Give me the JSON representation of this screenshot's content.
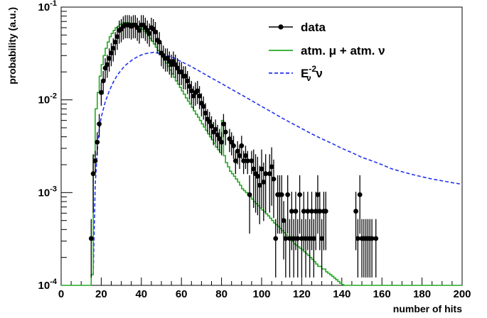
{
  "chart_data": {
    "type": "line",
    "title": "",
    "xlabel": "number of hits",
    "ylabel": "probability (a.u.)",
    "xlim": [
      0,
      200
    ],
    "ylim": [
      0.0001,
      0.1
    ],
    "yscale": "log",
    "grid": false,
    "legend_position": "top-right",
    "x_ticks": [
      0,
      20,
      40,
      60,
      80,
      100,
      120,
      140,
      160,
      180,
      200
    ],
    "x_tick_labels": [
      "0",
      "20",
      "40",
      "60",
      "80",
      "100",
      "120",
      "140",
      "160",
      "180",
      "200"
    ],
    "y_ticks": [
      0.0001,
      0.001,
      0.01,
      0.1
    ],
    "y_tick_labels": [
      {
        "base": "10",
        "exp": "-4"
      },
      {
        "base": "10",
        "exp": "-3"
      },
      {
        "base": "10",
        "exp": "-2"
      },
      {
        "base": "10",
        "exp": "-1"
      }
    ],
    "legend": [
      {
        "label": "data"
      },
      {
        "label": "atm. μ + atm. ν"
      },
      {
        "label": "E",
        "sub": "ν",
        "sup": "-2",
        "suffix": " ν"
      }
    ],
    "colors": {
      "data": "#000000",
      "atm": "#22aa22",
      "e2": "#2233ee"
    },
    "series": [
      {
        "kind": "points",
        "x": [
          15,
          16,
          17,
          18,
          19,
          20,
          21,
          22,
          23,
          24,
          25,
          26,
          27,
          28,
          29,
          30,
          31,
          32,
          33,
          34,
          35,
          36,
          37,
          38,
          39,
          40,
          41,
          42,
          43,
          44,
          45,
          46,
          47,
          48,
          49,
          50,
          51,
          52,
          53,
          54,
          55,
          56,
          57,
          58,
          59,
          60,
          61,
          62,
          63,
          64,
          65,
          66,
          67,
          68,
          69,
          70,
          71,
          72,
          73,
          74,
          75,
          76,
          77,
          78,
          79,
          80,
          81,
          82,
          84,
          85,
          86,
          87,
          88,
          89,
          90,
          91,
          92,
          93,
          94,
          95,
          96,
          97,
          98,
          99,
          100,
          101,
          102,
          104,
          105,
          106,
          107,
          108,
          109,
          110,
          111,
          112,
          113,
          114,
          115,
          116,
          117,
          118,
          119,
          120,
          121,
          122,
          123,
          124,
          125,
          126,
          127,
          128,
          129,
          130,
          131,
          132,
          147,
          148,
          149,
          150,
          151,
          152,
          153,
          154,
          155,
          157
        ],
        "y": [
          0.00032,
          0.0016,
          0.0022,
          0.0035,
          0.0055,
          0.012,
          0.016,
          0.022,
          0.024,
          0.028,
          0.032,
          0.036,
          0.042,
          0.048,
          0.056,
          0.058,
          0.062,
          0.064,
          0.064,
          0.064,
          0.062,
          0.064,
          0.064,
          0.06,
          0.056,
          0.064,
          0.064,
          0.06,
          0.056,
          0.052,
          0.06,
          0.058,
          0.054,
          0.044,
          0.042,
          0.032,
          0.03,
          0.028,
          0.028,
          0.026,
          0.024,
          0.026,
          0.024,
          0.022,
          0.02,
          0.02,
          0.018,
          0.018,
          0.016,
          0.014,
          0.0125,
          0.011,
          0.012,
          0.0125,
          0.011,
          0.0092,
          0.0085,
          0.0072,
          0.0062,
          0.0058,
          0.0052,
          0.0045,
          0.0048,
          0.0042,
          0.0038,
          0.0035,
          0.0055,
          0.0045,
          0.0038,
          0.0035,
          0.0032,
          0.0022,
          0.0028,
          0.0025,
          0.0032,
          0.0022,
          0.0025,
          0.0022,
          0.00095,
          0.0022,
          0.0018,
          0.0016,
          0.0015,
          0.0012,
          0.0018,
          0.0013,
          0.0016,
          0.0016,
          0.0019,
          0.0014,
          0.00032,
          0.00095,
          0.00095,
          0.00095,
          0.0005,
          0.00032,
          0.00095,
          0.00032,
          0.00063,
          0.00032,
          0.00063,
          0.00032,
          0.00095,
          0.00032,
          0.00063,
          0.00032,
          0.00063,
          0.00032,
          0.00063,
          0.00032,
          0.00063,
          0.00095,
          0.00063,
          0.00032,
          0.00063,
          0.00063,
          0.00063,
          0.00032,
          0.00095,
          0.00032,
          0.00032,
          0.00032,
          0.00032,
          0.00032,
          0.00032,
          0.00032
        ]
      },
      {
        "kind": "step",
        "x": [
          0,
          1,
          2,
          3,
          4,
          5,
          6,
          7,
          8,
          9,
          10,
          11,
          12,
          13,
          14,
          15,
          16,
          17,
          18,
          19,
          20,
          21,
          22,
          23,
          24,
          25,
          26,
          27,
          28,
          29,
          30,
          31,
          32,
          33,
          34,
          35,
          36,
          37,
          38,
          39,
          40,
          41,
          42,
          43,
          44,
          45,
          46,
          47,
          48,
          49,
          50,
          51,
          52,
          53,
          54,
          55,
          56,
          57,
          58,
          59,
          60,
          61,
          62,
          63,
          64,
          65,
          66,
          67,
          68,
          69,
          70,
          71,
          72,
          73,
          74,
          75,
          76,
          77,
          78,
          79,
          80,
          81,
          82,
          83,
          84,
          85,
          86,
          87,
          88,
          89,
          90,
          91,
          92,
          93,
          94,
          95,
          96,
          97,
          98,
          99,
          100,
          101,
          102,
          103,
          104,
          105,
          106,
          107,
          108,
          109,
          110,
          111,
          112,
          113,
          114,
          115,
          116,
          117,
          118,
          119,
          120,
          121,
          122,
          123,
          124,
          125,
          126,
          127,
          128,
          129,
          130,
          131,
          132,
          133,
          134,
          135,
          136,
          137,
          138,
          139,
          140,
          141,
          142,
          143,
          144,
          145,
          146,
          147,
          148,
          149,
          150,
          151,
          152,
          153,
          154,
          155,
          156,
          157,
          158,
          159,
          160,
          161,
          162,
          163,
          164,
          165,
          166,
          167,
          168,
          169,
          170,
          171,
          172,
          173,
          174,
          175,
          176,
          177,
          178,
          179,
          180,
          181,
          182,
          183,
          184,
          185,
          186,
          187,
          188,
          189,
          190,
          191,
          192,
          193,
          194,
          195,
          196,
          197,
          198,
          199
        ],
        "y": [
          0.0001,
          0.0001,
          0.0001,
          0.0001,
          0.0001,
          0.0001,
          0.0001,
          0.0001,
          0.0001,
          0.0001,
          0.0001,
          0.0001,
          0.0001,
          0.0001,
          0.0001,
          0.00013,
          0.0025,
          0.008,
          0.012,
          0.018,
          0.024,
          0.03,
          0.036,
          0.042,
          0.048,
          0.052,
          0.056,
          0.06,
          0.062,
          0.065,
          0.067,
          0.068,
          0.068,
          0.068,
          0.067,
          0.066,
          0.065,
          0.064,
          0.062,
          0.06,
          0.058,
          0.055,
          0.052,
          0.049,
          0.046,
          0.043,
          0.04,
          0.037,
          0.034,
          0.031,
          0.029,
          0.027,
          0.025,
          0.023,
          0.021,
          0.019,
          0.0175,
          0.016,
          0.0148,
          0.0136,
          0.0125,
          0.0115,
          0.0105,
          0.0097,
          0.009,
          0.0083,
          0.0076,
          0.007,
          0.0065,
          0.006,
          0.0055,
          0.0051,
          0.0047,
          0.0043,
          0.004,
          0.0037,
          0.0034,
          0.0031,
          0.0029,
          0.0027,
          0.006,
          0.0025,
          0.0021,
          0.0019,
          0.0017,
          0.0016,
          0.0015,
          0.0014,
          0.0013,
          0.0012,
          0.0011,
          0.00105,
          0.001,
          0.00095,
          0.0009,
          0.00085,
          0.0008,
          0.00076,
          0.00072,
          0.00068,
          0.00065,
          0.00062,
          0.00059,
          0.00056,
          0.00053,
          0.0005,
          0.00047,
          0.00045,
          0.00043,
          0.00041,
          0.00039,
          0.00037,
          0.00035,
          0.00033,
          0.00031,
          0.0003,
          0.00028,
          0.00027,
          0.00026,
          0.00025,
          0.00024,
          0.00023,
          0.00022,
          0.00021,
          0.0002,
          0.00019,
          0.00018,
          0.00017,
          0.00016,
          0.00016,
          0.00015,
          0.00015,
          0.00014,
          0.000135,
          0.00013,
          0.000125,
          0.00012,
          0.000115,
          0.00011,
          0.000105,
          0.000102,
          0.0001,
          0.0001,
          0.0001,
          0.0001,
          0.0001,
          0.0001,
          0.0001,
          0.0001,
          0.0001,
          0.0001,
          0.0001,
          0.0001,
          0.0001,
          0.0001,
          0.0001,
          0.0001,
          0.0001,
          0.0001,
          0.0001,
          0.0001,
          0.0001,
          0.0001,
          0.0001,
          0.0001,
          0.0001,
          0.0001,
          0.0001,
          0.0001,
          0.0001,
          0.0001,
          0.0001,
          0.0001,
          0.0001,
          0.0001,
          0.0001,
          0.0001,
          0.0001,
          0.0001,
          0.0001,
          0.0001,
          0.0001,
          0.0001,
          0.0001,
          0.0001,
          0.0001,
          0.0001,
          0.0001,
          0.0001,
          0.0001,
          0.0001,
          0.0001,
          0.0001,
          0.0001,
          0.0001,
          0.0001,
          0.0001,
          0.0001,
          0.0001,
          0.0001
        ]
      },
      {
        "kind": "dashed",
        "x": [
          16,
          17,
          18,
          19,
          20,
          22,
          24,
          26,
          28,
          30,
          32,
          34,
          36,
          38,
          40,
          42,
          44,
          46,
          48,
          50,
          52,
          54,
          56,
          58,
          60,
          65,
          70,
          75,
          80,
          85,
          90,
          95,
          100,
          105,
          110,
          115,
          120,
          125,
          130,
          135,
          140,
          145,
          150,
          155,
          160,
          165,
          170,
          175,
          180,
          185,
          190,
          195,
          200
        ],
        "y": [
          0.00013,
          0.0012,
          0.0028,
          0.0048,
          0.0065,
          0.0095,
          0.0125,
          0.0155,
          0.0185,
          0.021,
          0.0235,
          0.0255,
          0.0275,
          0.029,
          0.0305,
          0.0315,
          0.032,
          0.0325,
          0.032,
          0.0315,
          0.0305,
          0.0295,
          0.0285,
          0.027,
          0.0258,
          0.0228,
          0.0198,
          0.0172,
          0.015,
          0.013,
          0.0113,
          0.0098,
          0.0085,
          0.0074,
          0.0064,
          0.0056,
          0.0049,
          0.0043,
          0.0038,
          0.0034,
          0.003,
          0.0027,
          0.0024,
          0.0022,
          0.002,
          0.0018,
          0.00168,
          0.00157,
          0.00148,
          0.0014,
          0.00134,
          0.00128,
          0.00123
        ]
      }
    ]
  }
}
